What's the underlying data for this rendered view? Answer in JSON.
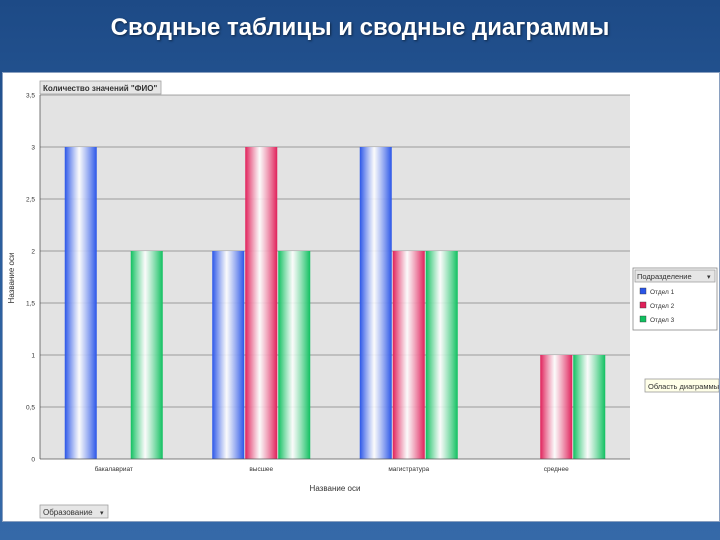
{
  "slide": {
    "title": "Сводные таблицы и сводные диаграммы"
  },
  "chart_data": {
    "type": "bar",
    "title": "Количество значений \"ФИО\"",
    "xlabel": "Название оси",
    "ylabel": "Название оси",
    "categories": [
      "бакалавриат",
      "высшее",
      "магистратура",
      "среднее"
    ],
    "series": [
      {
        "name": "Отдел 1",
        "values": [
          3,
          2,
          3,
          null
        ],
        "color": "#2a55e8"
      },
      {
        "name": "Отдел 2",
        "values": [
          null,
          3,
          2,
          1
        ],
        "color": "#e0205a"
      },
      {
        "name": "Отдел 3",
        "values": [
          2,
          2,
          2,
          1
        ],
        "color": "#10c060"
      }
    ],
    "ylim": [
      0,
      3.5
    ],
    "yticks": [
      "0",
      "0,5",
      "1",
      "1,5",
      "2",
      "2,5",
      "3",
      "3,5"
    ],
    "grid": true,
    "legend_title": "Подразделение",
    "legend_position": "right",
    "plot_area_label": "Область диаграммы",
    "filter_field": "Образование"
  }
}
